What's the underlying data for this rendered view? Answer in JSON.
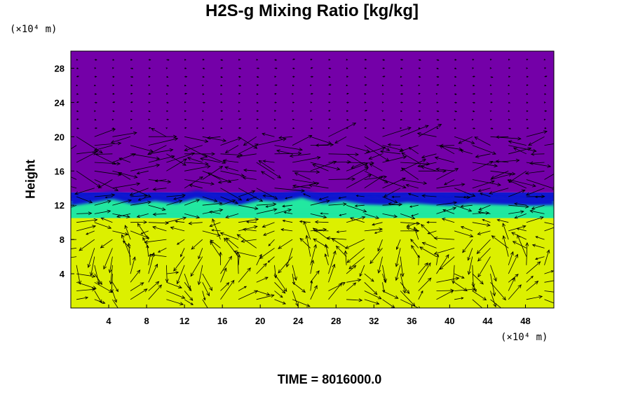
{
  "chart_data": {
    "type": "heatmap",
    "title": "H2S-g Mixing Ratio [kg/kg]",
    "ylabel": "Height",
    "xlabel": "",
    "x_unit": "(×10⁴ m)",
    "y_unit": "(×10⁴ m)",
    "xlim": [
      0,
      51
    ],
    "ylim": [
      0,
      30
    ],
    "xticks": [
      4,
      8,
      12,
      16,
      20,
      24,
      28,
      32,
      36,
      40,
      44,
      48
    ],
    "yticks": [
      4,
      8,
      12,
      16,
      20,
      24,
      28
    ],
    "field_regions": [
      {
        "level": "high",
        "color": "#dcf000",
        "y_range": [
          0,
          10.5
        ]
      },
      {
        "level": "transition",
        "color": "#20e8a0",
        "y_range": [
          10.5,
          12.5
        ]
      },
      {
        "level": "edge",
        "color": "#1018d0",
        "y_range": [
          12.5,
          13.5
        ]
      },
      {
        "level": "low",
        "color": "#7400a8",
        "y_range": [
          13.5,
          30
        ]
      }
    ],
    "interface_height": [
      12.8,
      13.2,
      13.6,
      13.0,
      13.4,
      13.1,
      13.7,
      13.2,
      12.9,
      13.5,
      13.3,
      13.8,
      13.1,
      13.4,
      13.0,
      12.9,
      13.2,
      13.0,
      12.8,
      13.1,
      13.0,
      12.9,
      12.8,
      12.9
    ],
    "grid": false,
    "legend": "none",
    "footer_text": "TIME = 8016000.0"
  },
  "colors": {
    "high": "#dcf000",
    "transition": "#20e8a0",
    "edge": "#1018d0",
    "low": "#7400a8",
    "vectors": "#000000"
  }
}
